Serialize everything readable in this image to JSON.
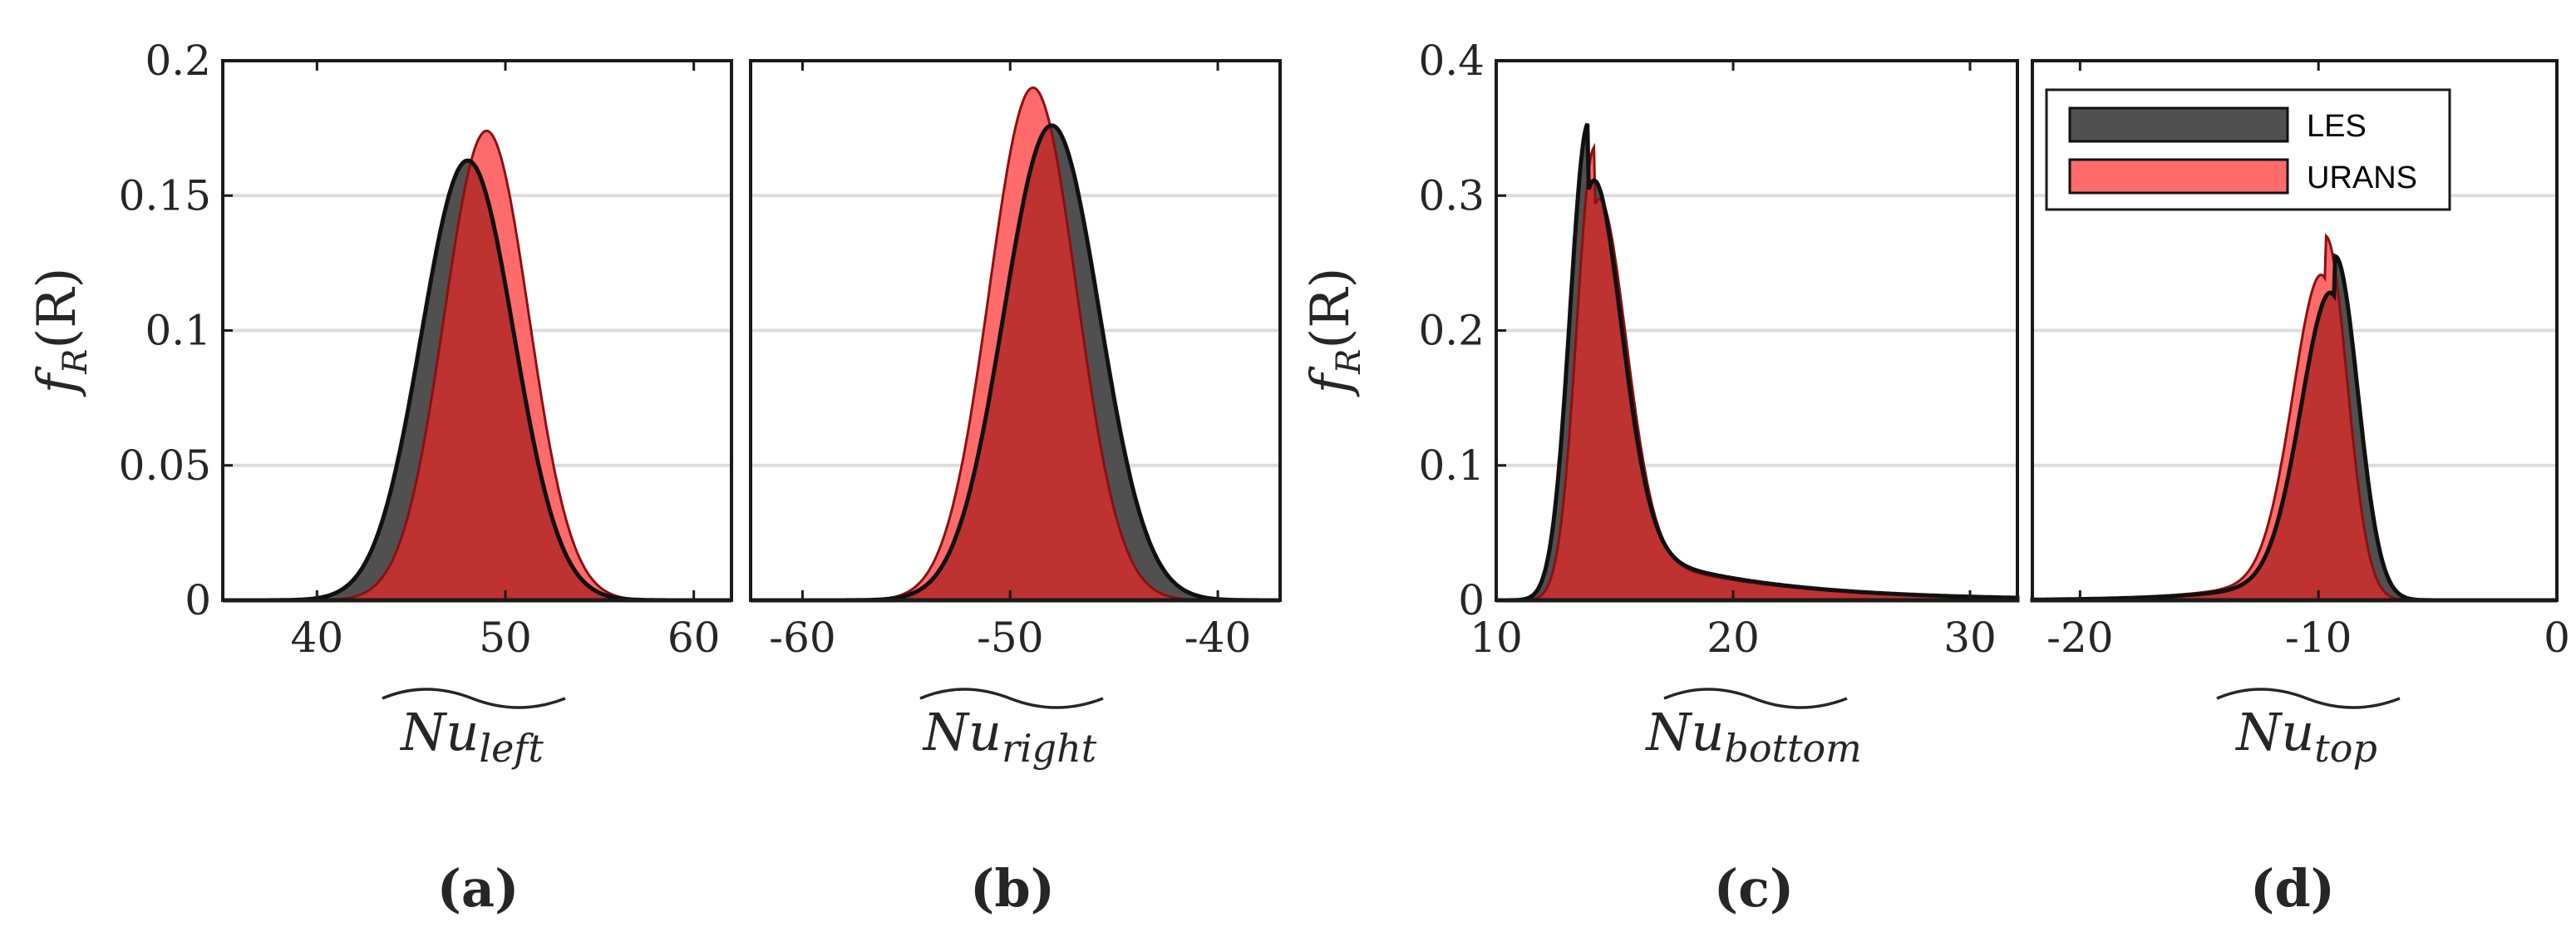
{
  "chart_data": [
    {
      "type": "area",
      "panel": "(a)",
      "xlabel": "Nu",
      "xlabel_sub": "left",
      "ylabel": "f",
      "ylabel_sub": "R",
      "ylabel_arg": "(R)",
      "xlim": [
        35,
        62
      ],
      "ylim": [
        0,
        0.2
      ],
      "xticks": [
        "40",
        "50",
        "60"
      ],
      "yticks": [
        "0",
        "0.05",
        "0.1",
        "0.15",
        "0.2"
      ],
      "grid": true,
      "series": [
        {
          "name": "LES",
          "dist": "gauss",
          "mean": 48.0,
          "sigma": 2.45,
          "peak": 0.163
        },
        {
          "name": "URANS",
          "dist": "gauss",
          "mean": 49.0,
          "sigma": 2.25,
          "peak": 0.174
        }
      ]
    },
    {
      "type": "area",
      "panel": "(b)",
      "xlabel": "Nu",
      "xlabel_sub": "right",
      "xlim": [
        -62.5,
        -37
      ],
      "ylim": [
        0,
        0.2
      ],
      "xticks": [
        "-60",
        "-50",
        "-40"
      ],
      "yticks": [],
      "grid": true,
      "series": [
        {
          "name": "LES",
          "dist": "gauss",
          "mean": -48.0,
          "sigma": 2.3,
          "peak": 0.176
        },
        {
          "name": "URANS",
          "dist": "gauss",
          "mean": -48.9,
          "sigma": 2.1,
          "peak": 0.19
        }
      ]
    },
    {
      "type": "area",
      "panel": "(c)",
      "xlabel": "Nu",
      "xlabel_sub": "bottom",
      "ylabel": "f",
      "ylabel_sub": "R",
      "ylabel_arg": "(R)",
      "xlim": [
        10,
        32
      ],
      "ylim": [
        0,
        0.4
      ],
      "xticks": [
        "10",
        "20",
        "30"
      ],
      "yticks": [
        "0",
        "0.1",
        "0.2",
        "0.3",
        "0.4"
      ],
      "grid": true,
      "series": [
        {
          "name": "LES",
          "dist": "skew-right",
          "mode": 13.9,
          "sigma_left": 0.78,
          "sigma_right": 1.3,
          "tail_weight": 0.14,
          "tail_scale": 5.5,
          "peak": 0.354
        },
        {
          "name": "URANS",
          "dist": "skew-right",
          "mode": 14.15,
          "sigma_left": 0.75,
          "sigma_right": 1.25,
          "tail_weight": 0.13,
          "tail_scale": 5.5,
          "peak": 0.336
        }
      ]
    },
    {
      "type": "area",
      "panel": "(d)",
      "xlabel": "Nu",
      "xlabel_sub": "top",
      "xlim": [
        -22,
        0
      ],
      "ylim": [
        0,
        0.4
      ],
      "xticks": [
        "-20",
        "-10",
        "0"
      ],
      "yticks": [],
      "grid": true,
      "legend": {
        "position": "top",
        "entries": [
          "LES",
          "URANS"
        ]
      },
      "series": [
        {
          "name": "LES",
          "dist": "skew-left",
          "mode": -9.3,
          "sigma_left": 1.35,
          "sigma_right": 0.95,
          "tail_weight": 0.12,
          "tail_scale": 3.0,
          "peak": 0.255
        },
        {
          "name": "URANS",
          "dist": "skew-left",
          "mode": -9.7,
          "sigma_left": 1.3,
          "sigma_right": 0.9,
          "tail_weight": 0.12,
          "tail_scale": 3.0,
          "peak": 0.27
        }
      ]
    }
  ],
  "colors": {
    "LES": "#505050",
    "URANS": "#ff6b6b",
    "overlap": "#be3232",
    "grid": "#dcdcdc",
    "axis": "#1a1a1a"
  }
}
